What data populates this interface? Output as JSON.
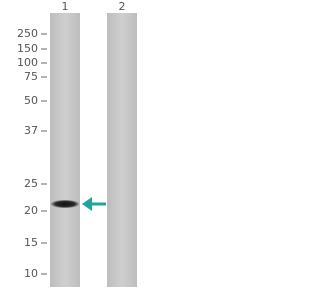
{
  "lanes": [
    "1",
    "2"
  ],
  "markers": [
    250,
    150,
    100,
    75,
    50,
    37,
    25,
    20,
    15,
    10
  ]
}
